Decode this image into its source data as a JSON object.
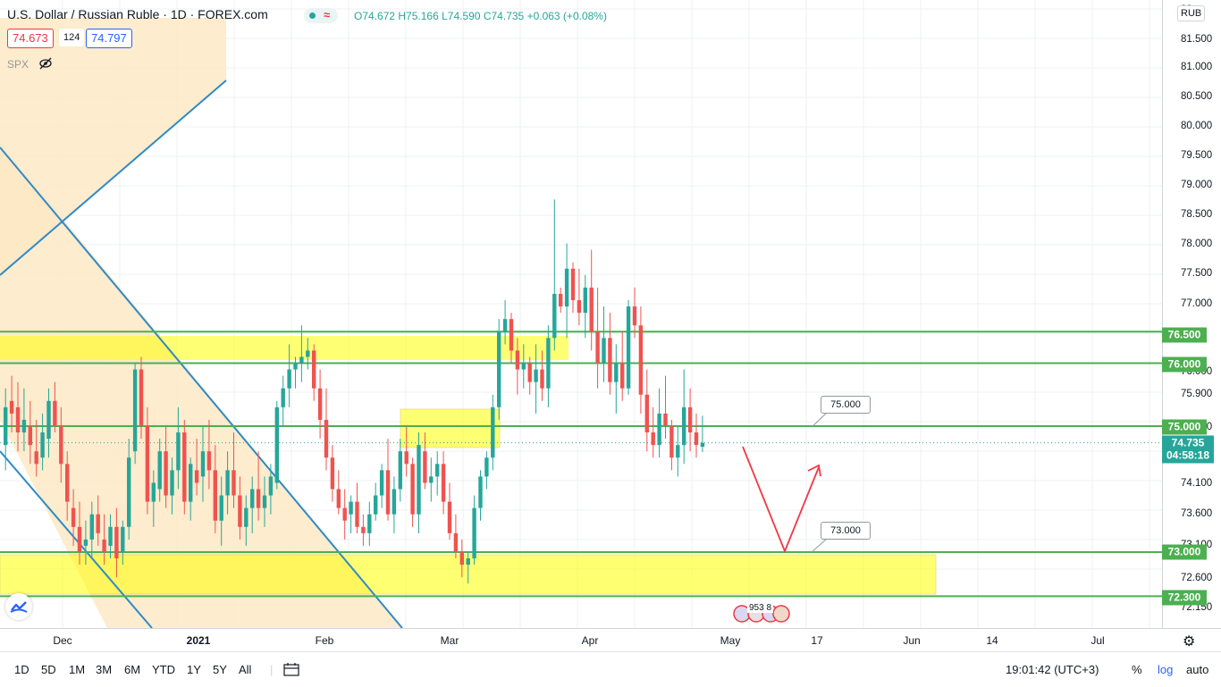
{
  "header": {
    "title": "U.S. Dollar / Russian Ruble · 1D · FOREX.com",
    "ohlc": {
      "o": "O74.672",
      "h": "H75.166",
      "l": "L74.590",
      "c": "C74.735",
      "chg": "+0.063 (+0.08%)"
    },
    "bid": "74.673",
    "spread": "124",
    "ask": "74.797",
    "compare_symbol": "SPX",
    "currency": "RUB"
  },
  "colors": {
    "up": "#26a69a",
    "down": "#ef5350",
    "level_line": "#4caf50",
    "zone_yellow": "#ffff00",
    "channel_blue": "#2e8ac8",
    "projection": "#f23645"
  },
  "price_axis": {
    "ticks": [
      "82.",
      "81.500",
      "81.000",
      "80.500",
      "80.000",
      "79.500",
      "79.000",
      "78.500",
      "78.000",
      "77.500",
      "77.000",
      "76.500",
      "76.000",
      "75.900",
      "75.300",
      "75.000",
      "74.735",
      "74.100",
      "73.600",
      "73.100",
      "73.000",
      "72.600",
      "72.300",
      "72.150"
    ],
    "label_76500": "76.500",
    "label_76000": "76.000",
    "label_75000": "75.000",
    "label_73000": "73.000",
    "label_72300": "72.300",
    "last_price": "74.735",
    "countdown": "04:58:18"
  },
  "time_axis": {
    "labels": [
      "Dec",
      "2021",
      "Feb",
      "Mar",
      "Apr",
      "May",
      "17",
      "Jun",
      "14",
      "Jul"
    ]
  },
  "callouts": {
    "upper": "75.000",
    "lower": "73.000"
  },
  "events_label": "953 8",
  "bottom_bar": {
    "ranges": [
      "1D",
      "5D",
      "1M",
      "3M",
      "6M",
      "YTD",
      "1Y",
      "5Y",
      "All"
    ],
    "clock": "19:01:42 (UTC+3)",
    "percent": "%",
    "log": "log",
    "auto": "auto"
  },
  "icons": {
    "calendar_range": "calendar-range-icon",
    "settings": "gear-icon",
    "visibility": "eye-off-icon",
    "logo": "tradingview-logo-icon"
  },
  "chart_data": {
    "type": "candlestick",
    "symbol": "USDRUB",
    "interval": "1D",
    "levels": [
      76.5,
      76.0,
      75.0,
      73.0,
      72.3
    ],
    "last": 74.735,
    "ohlc": [
      [
        74.7,
        75.6,
        74.3,
        75.3
      ],
      [
        75.4,
        75.8,
        74.9,
        75.2
      ],
      [
        75.3,
        75.7,
        74.6,
        74.9
      ],
      [
        74.9,
        75.6,
        74.6,
        75.1
      ],
      [
        75.0,
        75.4,
        74.4,
        74.7
      ],
      [
        74.6,
        75.1,
        74.2,
        74.4
      ],
      [
        74.5,
        75.2,
        74.3,
        74.9
      ],
      [
        74.8,
        75.6,
        74.5,
        75.4
      ],
      [
        75.4,
        75.7,
        74.9,
        75.0
      ],
      [
        75.0,
        75.3,
        74.1,
        74.4
      ],
      [
        74.4,
        74.6,
        73.5,
        73.8
      ],
      [
        73.7,
        74.0,
        73.1,
        73.4
      ],
      [
        73.4,
        73.8,
        72.8,
        73.0
      ],
      [
        73.1,
        73.5,
        72.8,
        73.2
      ],
      [
        73.2,
        73.8,
        72.9,
        73.6
      ],
      [
        73.6,
        73.9,
        73.1,
        73.3
      ],
      [
        73.2,
        73.6,
        72.8,
        73.0
      ],
      [
        73.1,
        73.6,
        72.9,
        73.4
      ],
      [
        73.4,
        73.7,
        72.6,
        72.9
      ],
      [
        73.0,
        73.5,
        72.8,
        73.4
      ],
      [
        73.4,
        74.8,
        73.2,
        74.5
      ],
      [
        74.6,
        76.0,
        74.4,
        75.9
      ],
      [
        75.9,
        76.1,
        74.8,
        75.0
      ],
      [
        75.0,
        75.3,
        73.6,
        73.8
      ],
      [
        73.8,
        74.3,
        73.4,
        74.1
      ],
      [
        74.0,
        74.8,
        73.8,
        74.6
      ],
      [
        74.6,
        75.0,
        73.7,
        73.9
      ],
      [
        73.9,
        74.5,
        73.6,
        74.3
      ],
      [
        74.3,
        75.3,
        74.0,
        74.9
      ],
      [
        74.9,
        75.1,
        73.6,
        73.8
      ],
      [
        73.8,
        74.5,
        73.5,
        74.4
      ],
      [
        74.3,
        74.8,
        73.9,
        74.1
      ],
      [
        74.2,
        75.0,
        73.8,
        74.6
      ],
      [
        74.6,
        75.1,
        74.0,
        74.3
      ],
      [
        74.3,
        74.7,
        73.3,
        73.5
      ],
      [
        73.5,
        74.2,
        73.1,
        73.9
      ],
      [
        73.9,
        74.6,
        73.6,
        74.3
      ],
      [
        74.3,
        74.9,
        73.7,
        73.9
      ],
      [
        73.9,
        74.2,
        73.2,
        73.4
      ],
      [
        73.4,
        73.9,
        73.1,
        73.7
      ],
      [
        73.7,
        74.2,
        73.3,
        74.0
      ],
      [
        74.0,
        74.6,
        73.5,
        73.7
      ],
      [
        73.7,
        74.2,
        73.4,
        73.9
      ],
      [
        73.9,
        74.4,
        73.6,
        74.2
      ],
      [
        74.1,
        75.4,
        74.0,
        75.3
      ],
      [
        75.3,
        75.8,
        75.0,
        75.6
      ],
      [
        75.6,
        76.3,
        75.3,
        75.9
      ],
      [
        75.9,
        76.1,
        75.6,
        76.0
      ],
      [
        76.0,
        76.6,
        75.7,
        76.1
      ],
      [
        76.1,
        76.4,
        75.9,
        76.2
      ],
      [
        76.2,
        76.3,
        75.4,
        75.6
      ],
      [
        75.6,
        75.9,
        74.8,
        75.1
      ],
      [
        75.1,
        75.6,
        74.3,
        74.5
      ],
      [
        74.5,
        74.7,
        73.8,
        74.0
      ],
      [
        74.0,
        74.3,
        73.6,
        73.7
      ],
      [
        73.7,
        74.0,
        73.2,
        73.5
      ],
      [
        73.6,
        73.9,
        73.3,
        73.8
      ],
      [
        73.8,
        74.1,
        73.3,
        73.4
      ],
      [
        73.4,
        73.6,
        73.1,
        73.3
      ],
      [
        73.3,
        73.8,
        73.1,
        73.6
      ],
      [
        73.6,
        74.1,
        73.5,
        73.9
      ],
      [
        73.9,
        74.4,
        73.7,
        74.3
      ],
      [
        74.3,
        74.8,
        73.5,
        73.6
      ],
      [
        73.6,
        74.2,
        73.3,
        74.0
      ],
      [
        74.0,
        74.8,
        73.8,
        74.6
      ],
      [
        74.6,
        75.0,
        74.2,
        74.4
      ],
      [
        74.4,
        74.5,
        73.4,
        73.6
      ],
      [
        73.6,
        74.9,
        73.3,
        74.7
      ],
      [
        74.6,
        74.9,
        74.0,
        74.1
      ],
      [
        74.1,
        74.5,
        73.8,
        74.2
      ],
      [
        74.2,
        74.6,
        73.9,
        74.4
      ],
      [
        74.4,
        74.6,
        73.6,
        73.8
      ],
      [
        73.8,
        74.1,
        73.2,
        73.3
      ],
      [
        73.3,
        73.6,
        72.9,
        73.0
      ],
      [
        73.0,
        73.2,
        72.6,
        72.8
      ],
      [
        72.8,
        73.0,
        72.5,
        72.9
      ],
      [
        72.9,
        73.9,
        72.8,
        73.7
      ],
      [
        73.7,
        74.3,
        73.5,
        74.2
      ],
      [
        74.2,
        74.6,
        74.0,
        74.5
      ],
      [
        74.5,
        75.5,
        74.3,
        75.3
      ],
      [
        75.3,
        76.7,
        75.1,
        76.5
      ],
      [
        76.5,
        77.0,
        76.3,
        76.7
      ],
      [
        76.7,
        76.8,
        76.0,
        76.2
      ],
      [
        76.2,
        76.4,
        75.5,
        75.9
      ],
      [
        75.9,
        76.3,
        75.6,
        76.0
      ],
      [
        76.0,
        76.1,
        75.5,
        75.7
      ],
      [
        75.7,
        76.3,
        75.2,
        75.9
      ],
      [
        75.9,
        76.2,
        75.4,
        75.6
      ],
      [
        75.6,
        76.6,
        75.3,
        76.4
      ],
      [
        76.4,
        78.6,
        76.2,
        77.1
      ],
      [
        77.1,
        77.2,
        76.8,
        76.9
      ],
      [
        76.9,
        77.9,
        76.4,
        77.5
      ],
      [
        77.5,
        77.6,
        76.8,
        77.0
      ],
      [
        77.0,
        77.5,
        76.6,
        76.8
      ],
      [
        76.8,
        77.4,
        76.4,
        77.2
      ],
      [
        77.2,
        77.8,
        76.2,
        76.5
      ],
      [
        76.5,
        77.2,
        75.6,
        76.0
      ],
      [
        76.0,
        76.9,
        75.7,
        76.4
      ],
      [
        76.4,
        76.8,
        75.5,
        75.7
      ],
      [
        75.7,
        76.3,
        75.2,
        76.0
      ],
      [
        76.0,
        76.5,
        75.4,
        75.6
      ],
      [
        75.6,
        77.0,
        75.5,
        76.9
      ],
      [
        76.9,
        77.2,
        76.4,
        76.6
      ],
      [
        76.6,
        76.9,
        75.2,
        75.5
      ],
      [
        75.5,
        75.9,
        74.6,
        74.9
      ],
      [
        74.9,
        75.3,
        74.5,
        74.7
      ],
      [
        74.7,
        75.6,
        74.5,
        75.2
      ],
      [
        75.2,
        75.8,
        74.8,
        75.0
      ],
      [
        75.0,
        75.1,
        74.3,
        74.5
      ],
      [
        74.5,
        75.0,
        74.2,
        74.7
      ],
      [
        74.7,
        75.9,
        74.4,
        75.3
      ],
      [
        75.3,
        75.6,
        74.6,
        74.9
      ],
      [
        74.9,
        75.2,
        74.5,
        74.7
      ],
      [
        74.672,
        75.166,
        74.59,
        74.735
      ]
    ]
  }
}
